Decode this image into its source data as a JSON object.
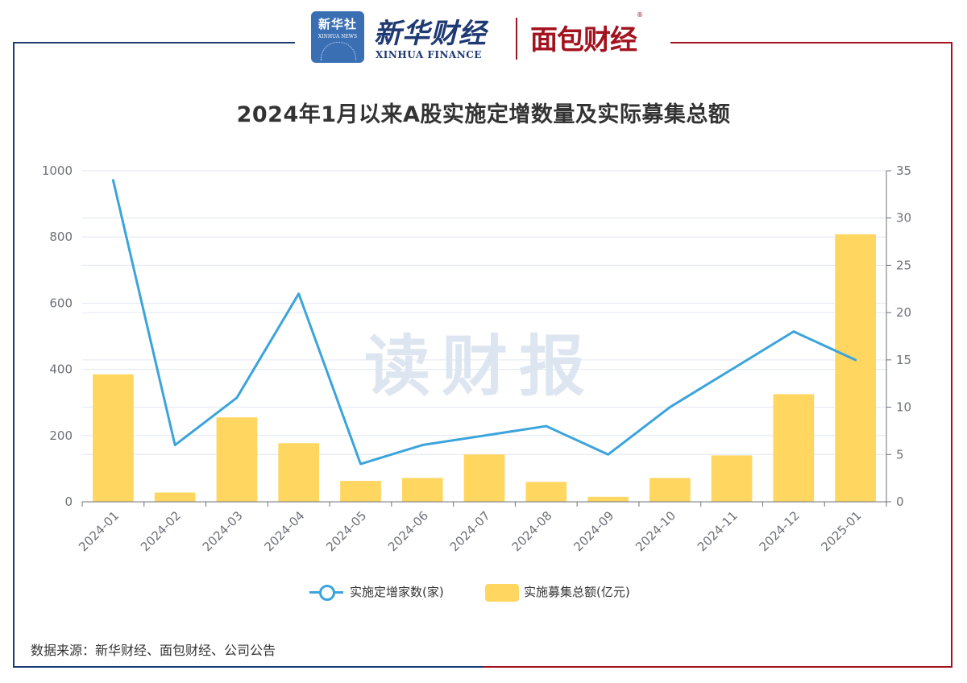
{
  "header": {
    "xinhua_badge_cn": "新华社",
    "xinhua_badge_en": "XINHUA NEWS",
    "brand_cn": "新华财经",
    "brand_en": "XINHUA FINANCE",
    "partner_logo": "面包财经",
    "registered_mark": "®"
  },
  "watermark": "读财报",
  "chart_data": {
    "type": "bar",
    "title": "2024年1月以来A股实施定增数量及实际募集总额",
    "categories": [
      "2024-01",
      "2024-02",
      "2024-03",
      "2024-04",
      "2024-05",
      "2024-06",
      "2024-07",
      "2024-08",
      "2024-09",
      "2024-10",
      "2024-11",
      "2024-12",
      "2025-01"
    ],
    "y_left": {
      "min": 0,
      "max": 1000,
      "ticks": [
        0,
        200,
        400,
        600,
        800,
        1000
      ]
    },
    "y_right": {
      "min": 0,
      "max": 35,
      "ticks": [
        0,
        5,
        10,
        15,
        20,
        25,
        30,
        35
      ]
    },
    "grid": true,
    "legend_position": "bottom",
    "series": [
      {
        "name": "实施定增家数(家)",
        "type": "line",
        "axis": "right",
        "color": "#3ba4dc",
        "values": [
          34,
          6,
          11,
          22,
          4,
          6,
          7,
          8,
          5,
          10,
          14,
          18,
          15
        ]
      },
      {
        "name": "实施募集总额(亿元)",
        "type": "bar",
        "axis": "left",
        "color": "#ffd660",
        "values": [
          385,
          28,
          255,
          177,
          63,
          72,
          143,
          60,
          15,
          72,
          140,
          325,
          808
        ]
      }
    ]
  },
  "source_note": "数据来源：新华财经、面包财经、公司公告"
}
